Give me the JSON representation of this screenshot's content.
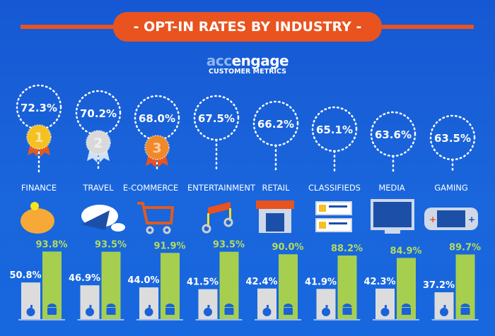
{
  "header": {
    "title": "- OPT-IN RATES BY INDUSTRY -",
    "logo_prefix": "acc",
    "logo_suffix": "engage",
    "logo_subtitle": "CUSTOMER METRICS"
  },
  "colors": {
    "banner": "#e8531f",
    "ios_bar": "#dcdcdc",
    "android_bar": "#a6cf4f",
    "android_label": "#b6dc5c",
    "background": "#1a62d9"
  },
  "chart_data": {
    "type": "bar",
    "categories": [
      "FINANCE",
      "TRAVEL",
      "E-COMMERCE",
      "ENTERTAINMENT",
      "RETAIL",
      "CLASSIFIEDS",
      "MEDIA",
      "GAMING"
    ],
    "overall": [
      "72.3%",
      "70.2%",
      "68.0%",
      "67.5%",
      "66.2%",
      "65.1%",
      "63.6%",
      "63.5%"
    ],
    "overall_values": [
      72.3,
      70.2,
      68.0,
      67.5,
      66.2,
      65.1,
      63.6,
      63.5
    ],
    "medals": [
      "1",
      "2",
      "3"
    ],
    "icons": [
      "piggy-bank-icon",
      "airplane-cloud-icon",
      "shopping-cart-icon",
      "music-note-icon",
      "storefront-icon",
      "classifieds-icon",
      "monitor-icon",
      "gamepad-icon"
    ],
    "series": [
      {
        "name": "iOS",
        "icon": "apple-icon",
        "values": [
          50.8,
          46.9,
          44.0,
          41.5,
          42.4,
          41.9,
          42.3,
          37.2
        ],
        "labels": [
          "50.8%",
          "46.9%",
          "44.0%",
          "41.5%",
          "42.4%",
          "41.9%",
          "42.3%",
          "37.2%"
        ]
      },
      {
        "name": "Android",
        "icon": "android-icon",
        "values": [
          93.8,
          93.5,
          91.9,
          93.5,
          90.0,
          88.2,
          84.9,
          89.7
        ],
        "labels": [
          "93.8%",
          "93.5%",
          "91.9%",
          "93.5%",
          "90.0%",
          "88.2%",
          "84.9%",
          "89.7%"
        ]
      }
    ],
    "ylim": [
      0,
      100
    ]
  }
}
